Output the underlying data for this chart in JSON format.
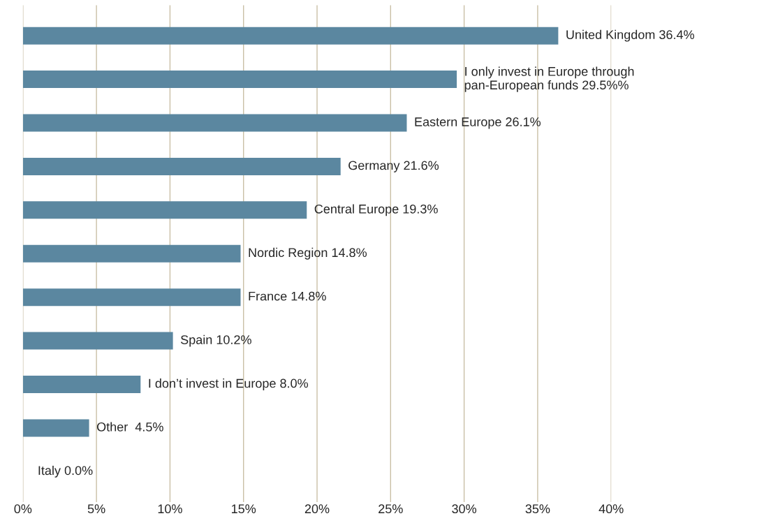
{
  "chart_data": {
    "type": "bar",
    "orientation": "horizontal",
    "categories": [
      "United Kingdom",
      "I only invest in Europe through\npan-European funds",
      "Eastern Europe",
      "Germany",
      "Central Europe",
      "Nordic Region",
      "France",
      "Spain",
      "I don’t invest in Europe",
      "Other ",
      "Italy"
    ],
    "values": [
      36.4,
      29.5,
      26.1,
      21.6,
      19.3,
      14.8,
      14.8,
      10.2,
      8.0,
      4.5,
      0.0
    ],
    "value_labels": [
      "36.4%",
      "29.5%%",
      "26.1%",
      "21.6%",
      "19.3%",
      "14.8%",
      "14.8%",
      "10.2%",
      "8.0%",
      "4.5%",
      "0.0%"
    ],
    "color": "#5b87a0",
    "xlim": [
      0,
      40
    ],
    "xticks": [
      {
        "value": 0,
        "label": "0%"
      },
      {
        "value": 5,
        "label": "5%"
      },
      {
        "value": 10,
        "label": "10%"
      },
      {
        "value": 15,
        "label": "15%"
      },
      {
        "value": 20,
        "label": "20%"
      },
      {
        "value": 25,
        "label": "25%"
      },
      {
        "value": 30,
        "label": "30%"
      },
      {
        "value": 35,
        "label": "35%"
      },
      {
        "value": 40,
        "label": "40%"
      }
    ],
    "grid": "x",
    "legend": false
  }
}
